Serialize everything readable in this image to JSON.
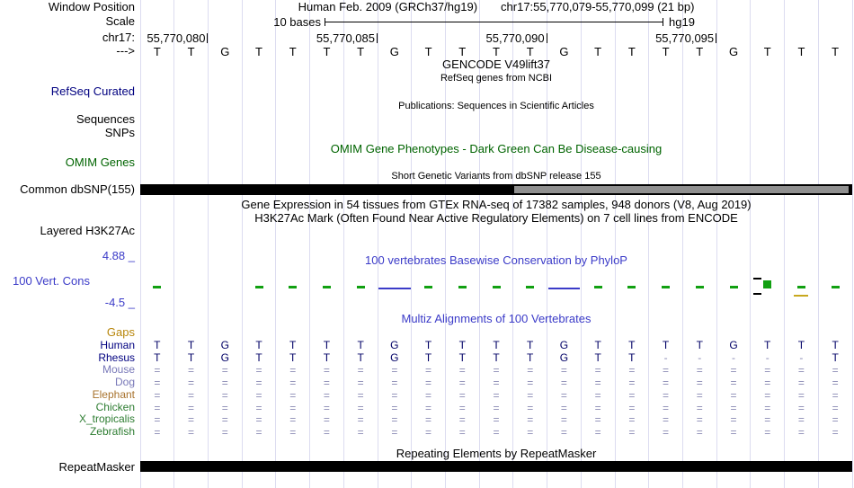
{
  "header": {
    "assembly_text": "Human Feb. 2009 (GRCh37/hg19)",
    "position_text": "chr17:55,770,079-55,770,099 (21 bp)",
    "scale_label": "10 bases",
    "assembly_short": "hg19"
  },
  "left_labels": {
    "window_position": "Window Position",
    "scale": "Scale",
    "chromosome": "chr17:",
    "direction_arrow": "--->",
    "refseq_curated": "RefSeq Curated",
    "sequences": "Sequences",
    "snps": "SNPs",
    "omim_genes": "OMIM Genes",
    "common_dbsnp": "Common dbSNP(155)",
    "layered_h3k27ac": "Layered H3K27Ac",
    "cons_max": "4.88 _",
    "cons_track": "100 Vert. Cons",
    "cons_min": "-4.5 _",
    "gaps": "Gaps",
    "repeatmasker": "RepeatMasker"
  },
  "ruler": {
    "ticks": [
      {
        "label": "55,770,080",
        "boundary": 2
      },
      {
        "label": "55,770,085",
        "boundary": 7
      },
      {
        "label": "55,770,090",
        "boundary": 12
      },
      {
        "label": "55,770,095",
        "boundary": 17
      }
    ]
  },
  "sequence": "TTGTTTTGTTTTGTTTTGTTT",
  "track_titles": {
    "gencode": "GENCODE V49lift37",
    "refseq_sub": "RefSeq genes from NCBI",
    "publications": "Publications: Sequences in Scientific Articles",
    "omim": "OMIM Gene Phenotypes - Dark Green Can Be Disease-causing",
    "dbsnp": "Short Genetic Variants from dbSNP release 155",
    "gtex": "Gene Expression in 54 tissues from GTEx RNA-seq of 17382 samples, 948 donors (V8, Aug 2019)",
    "h3k27ac": "H3K27Ac Mark (Often Found Near Active Regulatory Elements) on 7 cell lines from ENCODE",
    "phylop": "100 vertebrates Basewise Conservation by PhyloP",
    "multiz": "Multiz Alignments of 100 Vertebrates",
    "repeatmasker": "Repeating Elements by RepeatMasker"
  },
  "conservation": {
    "max": 4.88,
    "min": -4.5,
    "marks": [
      {
        "base": 0,
        "value": 0.2
      },
      {
        "base": 3,
        "value": 0.2
      },
      {
        "base": 4,
        "value": 0.2
      },
      {
        "base": 5,
        "value": 0.2
      },
      {
        "base": 6,
        "value": 0.2
      },
      {
        "base": 7,
        "value": 0
      },
      {
        "base": 8,
        "value": 0.2
      },
      {
        "base": 9,
        "value": 0.2
      },
      {
        "base": 10,
        "value": 0.2
      },
      {
        "base": 11,
        "value": 0.2
      },
      {
        "base": 12,
        "value": 0
      },
      {
        "base": 13,
        "value": 0.2
      },
      {
        "base": 14,
        "value": 0.2
      },
      {
        "base": 15,
        "value": 0.2
      },
      {
        "base": 16,
        "value": 0.2
      },
      {
        "base": 17,
        "value": 0.2
      },
      {
        "base": 18,
        "value": 1.6
      },
      {
        "base": 19,
        "value": -0.6
      },
      {
        "base": 19,
        "value": 0.25
      },
      {
        "base": 20,
        "value": 0.2
      }
    ]
  },
  "alignment": {
    "species": [
      {
        "name": "Human",
        "label_color": "#000080",
        "row": "TTGTTTTGTTTTGTTTTGTTT"
      },
      {
        "name": "Rhesus",
        "label_color": "#000080",
        "row": "TTGTTTTGTTTTGTT-----T"
      },
      {
        "name": "Mouse",
        "label_color": "#7878B8",
        "row": "====================="
      },
      {
        "name": "Dog",
        "label_color": "#7878B8",
        "row": "====================="
      },
      {
        "name": "Elephant",
        "label_color": "#A8732E",
        "row": "====================="
      },
      {
        "name": "Chicken",
        "label_color": "#2E7D32",
        "row": "====================="
      },
      {
        "name": "X_tropicalis",
        "label_color": "#2E7D32",
        "row": "====================="
      },
      {
        "name": "Zebrafish",
        "label_color": "#2E7D32",
        "row": "====================="
      }
    ]
  },
  "colors": {
    "grid": "#DCDCF0",
    "track_blue": "#3B3BC8",
    "dark_green": "#006400",
    "navy": "#000080",
    "gaps_label": "#B8860B",
    "align_letter": "#000066",
    "letter_dim": "#8A8AB4",
    "cons_green": "#11A011",
    "cons_neg": "#C8A81E",
    "bar_black": "#000000",
    "bar_gray": "#909090"
  }
}
